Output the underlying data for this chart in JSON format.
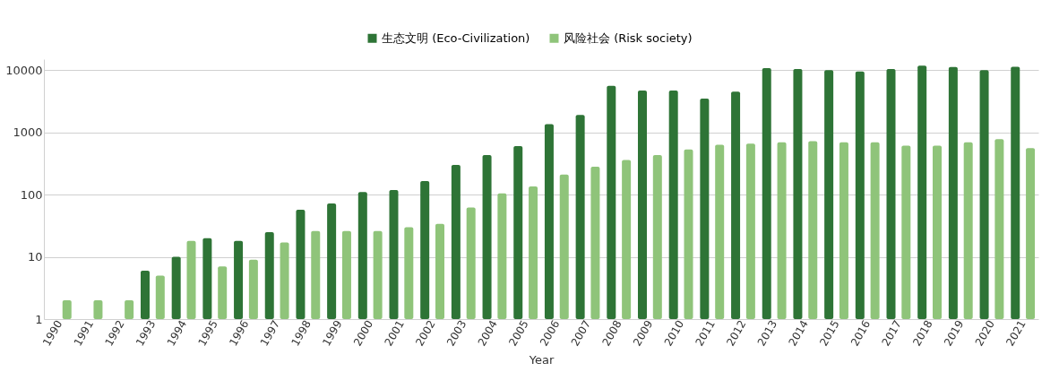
{
  "chart_data": {
    "type": "bar",
    "xlabel": "Year",
    "categories": [
      "1990",
      "1991",
      "1992",
      "1993",
      "1994",
      "1995",
      "1996",
      "1997",
      "1998",
      "1999",
      "2000",
      "2001",
      "2002",
      "2003",
      "2004",
      "2005",
      "2006",
      "2007",
      "2008",
      "2009",
      "2010",
      "2011",
      "2012",
      "2013",
      "2014",
      "2015",
      "2016",
      "2017",
      "2018",
      "2019",
      "2020",
      "2021"
    ],
    "series": [
      {
        "name": "生态文明 (Eco-Civilization)",
        "color": "#2e7436",
        "values": [
          null,
          null,
          null,
          6,
          10,
          20,
          18,
          25,
          57,
          72,
          110,
          118,
          165,
          300,
          430,
          600,
          1350,
          1900,
          5600,
          4700,
          4700,
          3500,
          4500,
          10800,
          10400,
          10000,
          9500,
          10400,
          11800,
          11200,
          10000,
          11300
        ]
      },
      {
        "name": "风险社会 (Risk society)",
        "color": "#8fc47a",
        "values": [
          2,
          2,
          2,
          5,
          18,
          7,
          9,
          17,
          26,
          26,
          26,
          30,
          34,
          62,
          105,
          135,
          210,
          280,
          360,
          430,
          530,
          630,
          660,
          690,
          720,
          690,
          690,
          610,
          610,
          690,
          780,
          560
        ]
      }
    ],
    "log": true,
    "ylim": [
      1,
      15000
    ],
    "yticks": [
      1,
      10,
      100,
      1000,
      10000
    ],
    "grid": "y",
    "legend": "top"
  }
}
